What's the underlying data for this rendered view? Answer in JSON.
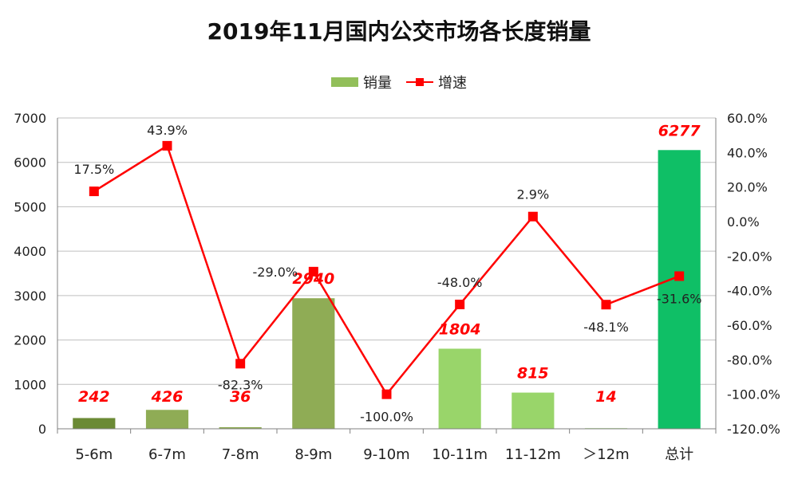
{
  "chart_data": {
    "type": "bar",
    "title": "2019年11月国内公交市场各长度销量",
    "categories": [
      "5-6m",
      "6-7m",
      "7-8m",
      "8-9m",
      "9-10m",
      "10-11m",
      "11-12m",
      "＞12m",
      "总计"
    ],
    "series": [
      {
        "name": "销量",
        "type": "bar",
        "axis": "left",
        "values": [
          242,
          426,
          36,
          2940,
          0,
          1804,
          815,
          14,
          6277
        ],
        "value_labels": [
          "242",
          "426",
          "36",
          "2940",
          "",
          "1804",
          "815",
          "14",
          "6277"
        ],
        "colors": [
          "#6b8a35",
          "#8fac55",
          "#8fac55",
          "#8fac55",
          "#8fac55",
          "#99d56a",
          "#99d56a",
          "#99d56a",
          "#0fbf66"
        ]
      },
      {
        "name": "增速",
        "type": "line",
        "axis": "right",
        "values": [
          17.5,
          43.9,
          -82.3,
          -29.0,
          -100.0,
          -48.0,
          2.9,
          -48.1,
          -31.6
        ],
        "value_labels": [
          "17.5%",
          "43.9%",
          "-82.3%",
          "-29.0%",
          "-100.0%",
          "-48.0%",
          "2.9%",
          "-48.1%",
          "-31.6%"
        ],
        "color": "#ff0000"
      }
    ],
    "y_left": {
      "min": 0,
      "max": 7000,
      "ticks": [
        "0",
        "1000",
        "2000",
        "3000",
        "4000",
        "5000",
        "6000",
        "7000"
      ]
    },
    "y_right": {
      "min": -120,
      "max": 60,
      "ticks": [
        "-120.0%",
        "-100.0%",
        "-80.0%",
        "-60.0%",
        "-40.0%",
        "-20.0%",
        "0.0%",
        "20.0%",
        "40.0%",
        "60.0%"
      ]
    },
    "grid": true,
    "legend_position": "top",
    "legend": [
      "销量",
      "增速"
    ],
    "value_label_color": "#ff0000",
    "axis_color": "#808080",
    "grid_color": "#bfbfbf"
  }
}
